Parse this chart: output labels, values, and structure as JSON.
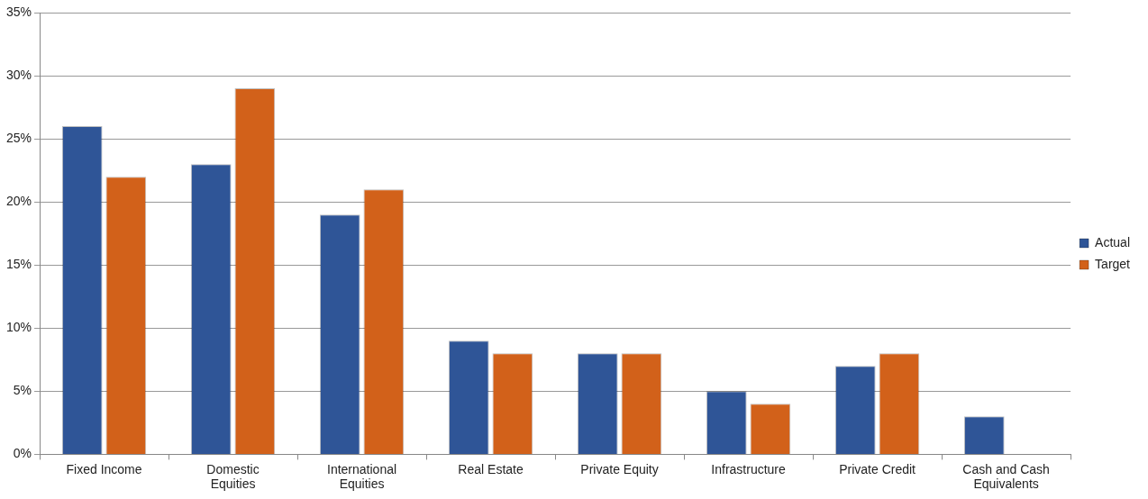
{
  "chart_data": {
    "type": "bar",
    "categories": [
      "Fixed Income",
      "Domestic Equities",
      "International Equities",
      "Real Estate",
      "Private Equity",
      "Infrastructure",
      "Private Credit",
      "Cash and Cash Equivalents"
    ],
    "series": [
      {
        "name": "Actual",
        "color": "#2f5597",
        "values": [
          26,
          23,
          19,
          9,
          8,
          5,
          7,
          3
        ]
      },
      {
        "name": "Target",
        "color": "#d2611a",
        "values": [
          22,
          29,
          21,
          8,
          8,
          4,
          8,
          0
        ]
      }
    ],
    "ylim": [
      0,
      35
    ],
    "yticks": [
      {
        "value": 0,
        "label": "0%"
      },
      {
        "value": 5,
        "label": "5%"
      },
      {
        "value": 10,
        "label": "10%"
      },
      {
        "value": 15,
        "label": "15%"
      },
      {
        "value": 20,
        "label": "20%"
      },
      {
        "value": 25,
        "label": "25%"
      },
      {
        "value": 30,
        "label": "30%"
      },
      {
        "value": 35,
        "label": "35%"
      }
    ],
    "grid": "y",
    "legend": "right"
  }
}
